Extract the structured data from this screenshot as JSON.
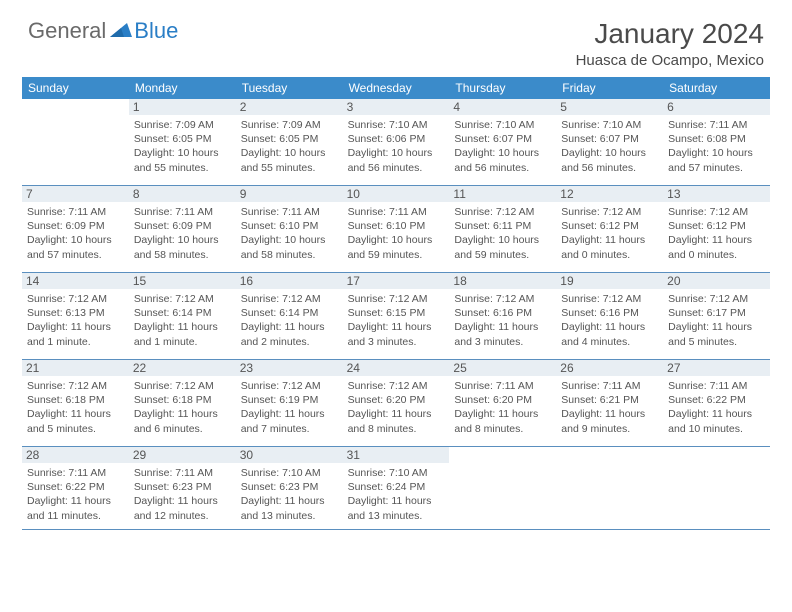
{
  "brand": {
    "text1": "General",
    "text2": "Blue"
  },
  "title": "January 2024",
  "location": "Huasca de Ocampo, Mexico",
  "colors": {
    "header_bg": "#3b8bca",
    "header_text": "#ffffff",
    "daynum_bg": "#e8eef3",
    "rule": "#5a8fbf",
    "text": "#555555",
    "brand_gray": "#6a6a6a",
    "brand_blue": "#2a7ec6"
  },
  "dow": [
    "Sunday",
    "Monday",
    "Tuesday",
    "Wednesday",
    "Thursday",
    "Friday",
    "Saturday"
  ],
  "labels": {
    "sunrise": "Sunrise: ",
    "sunset": "Sunset: ",
    "daylight": "Daylight: "
  },
  "weeks": [
    [
      null,
      {
        "n": "1",
        "sr": "7:09 AM",
        "ss": "6:05 PM",
        "dl": "10 hours and 55 minutes."
      },
      {
        "n": "2",
        "sr": "7:09 AM",
        "ss": "6:05 PM",
        "dl": "10 hours and 55 minutes."
      },
      {
        "n": "3",
        "sr": "7:10 AM",
        "ss": "6:06 PM",
        "dl": "10 hours and 56 minutes."
      },
      {
        "n": "4",
        "sr": "7:10 AM",
        "ss": "6:07 PM",
        "dl": "10 hours and 56 minutes."
      },
      {
        "n": "5",
        "sr": "7:10 AM",
        "ss": "6:07 PM",
        "dl": "10 hours and 56 minutes."
      },
      {
        "n": "6",
        "sr": "7:11 AM",
        "ss": "6:08 PM",
        "dl": "10 hours and 57 minutes."
      }
    ],
    [
      {
        "n": "7",
        "sr": "7:11 AM",
        "ss": "6:09 PM",
        "dl": "10 hours and 57 minutes."
      },
      {
        "n": "8",
        "sr": "7:11 AM",
        "ss": "6:09 PM",
        "dl": "10 hours and 58 minutes."
      },
      {
        "n": "9",
        "sr": "7:11 AM",
        "ss": "6:10 PM",
        "dl": "10 hours and 58 minutes."
      },
      {
        "n": "10",
        "sr": "7:11 AM",
        "ss": "6:10 PM",
        "dl": "10 hours and 59 minutes."
      },
      {
        "n": "11",
        "sr": "7:12 AM",
        "ss": "6:11 PM",
        "dl": "10 hours and 59 minutes."
      },
      {
        "n": "12",
        "sr": "7:12 AM",
        "ss": "6:12 PM",
        "dl": "11 hours and 0 minutes."
      },
      {
        "n": "13",
        "sr": "7:12 AM",
        "ss": "6:12 PM",
        "dl": "11 hours and 0 minutes."
      }
    ],
    [
      {
        "n": "14",
        "sr": "7:12 AM",
        "ss": "6:13 PM",
        "dl": "11 hours and 1 minute."
      },
      {
        "n": "15",
        "sr": "7:12 AM",
        "ss": "6:14 PM",
        "dl": "11 hours and 1 minute."
      },
      {
        "n": "16",
        "sr": "7:12 AM",
        "ss": "6:14 PM",
        "dl": "11 hours and 2 minutes."
      },
      {
        "n": "17",
        "sr": "7:12 AM",
        "ss": "6:15 PM",
        "dl": "11 hours and 3 minutes."
      },
      {
        "n": "18",
        "sr": "7:12 AM",
        "ss": "6:16 PM",
        "dl": "11 hours and 3 minutes."
      },
      {
        "n": "19",
        "sr": "7:12 AM",
        "ss": "6:16 PM",
        "dl": "11 hours and 4 minutes."
      },
      {
        "n": "20",
        "sr": "7:12 AM",
        "ss": "6:17 PM",
        "dl": "11 hours and 5 minutes."
      }
    ],
    [
      {
        "n": "21",
        "sr": "7:12 AM",
        "ss": "6:18 PM",
        "dl": "11 hours and 5 minutes."
      },
      {
        "n": "22",
        "sr": "7:12 AM",
        "ss": "6:18 PM",
        "dl": "11 hours and 6 minutes."
      },
      {
        "n": "23",
        "sr": "7:12 AM",
        "ss": "6:19 PM",
        "dl": "11 hours and 7 minutes."
      },
      {
        "n": "24",
        "sr": "7:12 AM",
        "ss": "6:20 PM",
        "dl": "11 hours and 8 minutes."
      },
      {
        "n": "25",
        "sr": "7:11 AM",
        "ss": "6:20 PM",
        "dl": "11 hours and 8 minutes."
      },
      {
        "n": "26",
        "sr": "7:11 AM",
        "ss": "6:21 PM",
        "dl": "11 hours and 9 minutes."
      },
      {
        "n": "27",
        "sr": "7:11 AM",
        "ss": "6:22 PM",
        "dl": "11 hours and 10 minutes."
      }
    ],
    [
      {
        "n": "28",
        "sr": "7:11 AM",
        "ss": "6:22 PM",
        "dl": "11 hours and 11 minutes."
      },
      {
        "n": "29",
        "sr": "7:11 AM",
        "ss": "6:23 PM",
        "dl": "11 hours and 12 minutes."
      },
      {
        "n": "30",
        "sr": "7:10 AM",
        "ss": "6:23 PM",
        "dl": "11 hours and 13 minutes."
      },
      {
        "n": "31",
        "sr": "7:10 AM",
        "ss": "6:24 PM",
        "dl": "11 hours and 13 minutes."
      },
      null,
      null,
      null
    ]
  ]
}
